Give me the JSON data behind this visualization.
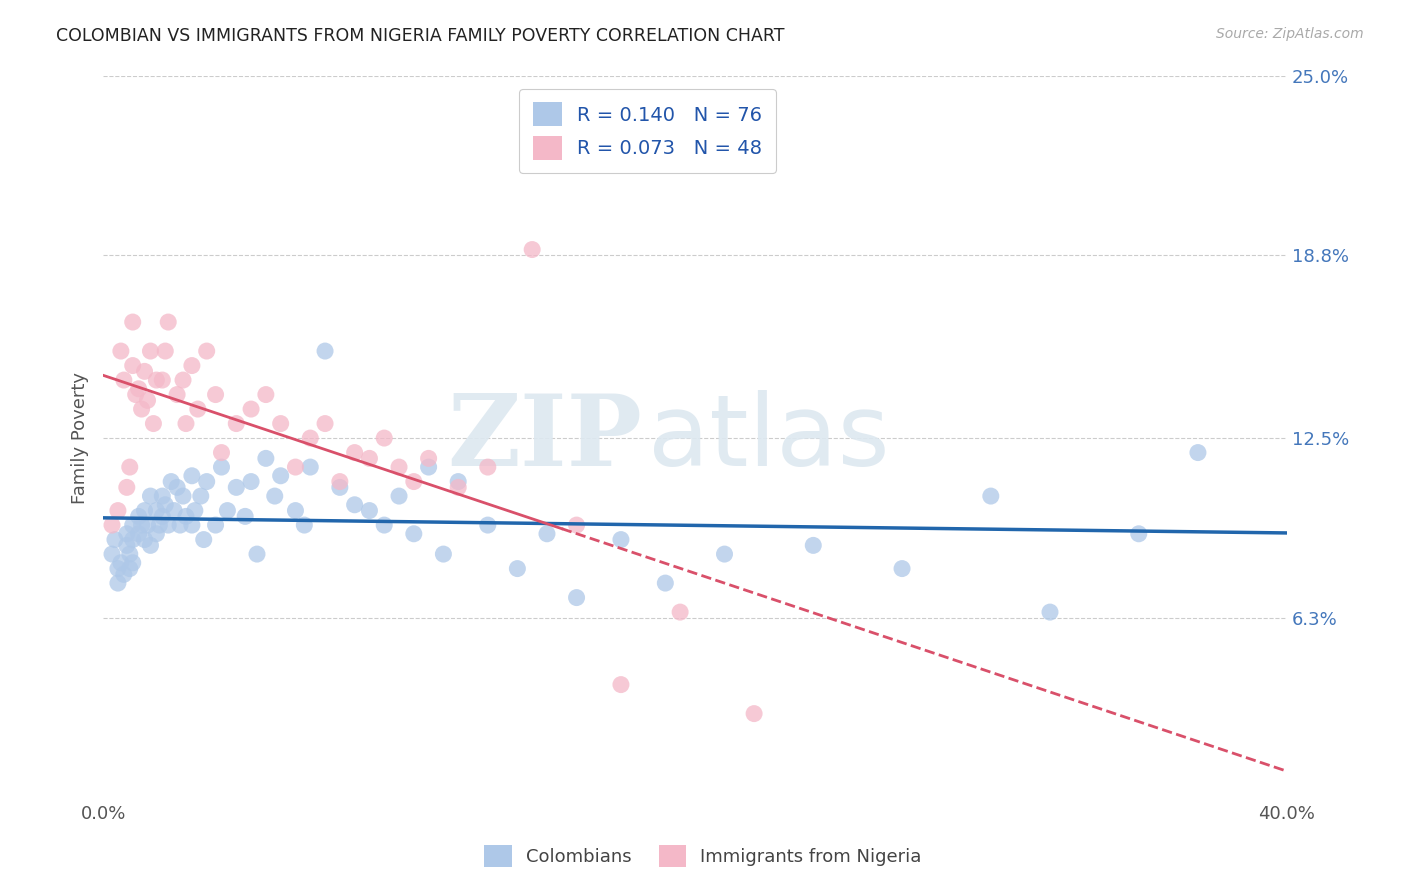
{
  "title": "COLOMBIAN VS IMMIGRANTS FROM NIGERIA FAMILY POVERTY CORRELATION CHART",
  "source": "Source: ZipAtlas.com",
  "ylabel": "Family Poverty",
  "x_min": 0.0,
  "x_max": 0.4,
  "y_min": 0.0,
  "y_max": 0.25,
  "y_tick_labels_right": [
    "25.0%",
    "18.8%",
    "12.5%",
    "6.3%"
  ],
  "y_tick_vals_right": [
    0.25,
    0.188,
    0.125,
    0.063
  ],
  "legend_label1": "Colombians",
  "legend_label2": "Immigrants from Nigeria",
  "r1": "0.140",
  "n1": "76",
  "r2": "0.073",
  "n2": "48",
  "color_blue": "#aec8e8",
  "color_pink": "#f4b8c8",
  "line_color_blue": "#2166ac",
  "line_color_pink": "#d9506a",
  "watermark_zip": "ZIP",
  "watermark_atlas": "atlas",
  "background_color": "#ffffff",
  "grid_color": "#cccccc",
  "colombians_x": [
    0.003,
    0.004,
    0.005,
    0.005,
    0.006,
    0.007,
    0.008,
    0.008,
    0.009,
    0.009,
    0.01,
    0.01,
    0.01,
    0.012,
    0.012,
    0.013,
    0.014,
    0.014,
    0.015,
    0.016,
    0.016,
    0.018,
    0.018,
    0.019,
    0.02,
    0.02,
    0.021,
    0.022,
    0.023,
    0.024,
    0.025,
    0.026,
    0.027,
    0.028,
    0.03,
    0.03,
    0.031,
    0.033,
    0.034,
    0.035,
    0.038,
    0.04,
    0.042,
    0.045,
    0.048,
    0.05,
    0.052,
    0.055,
    0.058,
    0.06,
    0.065,
    0.068,
    0.07,
    0.075,
    0.08,
    0.085,
    0.09,
    0.095,
    0.1,
    0.105,
    0.11,
    0.115,
    0.12,
    0.13,
    0.14,
    0.15,
    0.16,
    0.175,
    0.19,
    0.21,
    0.24,
    0.27,
    0.3,
    0.32,
    0.35,
    0.37
  ],
  "colombians_y": [
    0.085,
    0.09,
    0.08,
    0.075,
    0.082,
    0.078,
    0.088,
    0.092,
    0.085,
    0.08,
    0.09,
    0.095,
    0.082,
    0.092,
    0.098,
    0.095,
    0.09,
    0.1,
    0.095,
    0.088,
    0.105,
    0.092,
    0.1,
    0.095,
    0.098,
    0.105,
    0.102,
    0.095,
    0.11,
    0.1,
    0.108,
    0.095,
    0.105,
    0.098,
    0.112,
    0.095,
    0.1,
    0.105,
    0.09,
    0.11,
    0.095,
    0.115,
    0.1,
    0.108,
    0.098,
    0.11,
    0.085,
    0.118,
    0.105,
    0.112,
    0.1,
    0.095,
    0.115,
    0.155,
    0.108,
    0.102,
    0.1,
    0.095,
    0.105,
    0.092,
    0.115,
    0.085,
    0.11,
    0.095,
    0.08,
    0.092,
    0.07,
    0.09,
    0.075,
    0.085,
    0.088,
    0.08,
    0.105,
    0.065,
    0.092,
    0.12
  ],
  "nigeria_x": [
    0.003,
    0.005,
    0.006,
    0.007,
    0.008,
    0.009,
    0.01,
    0.01,
    0.011,
    0.012,
    0.013,
    0.014,
    0.015,
    0.016,
    0.017,
    0.018,
    0.02,
    0.021,
    0.022,
    0.025,
    0.027,
    0.028,
    0.03,
    0.032,
    0.035,
    0.038,
    0.04,
    0.045,
    0.05,
    0.055,
    0.06,
    0.065,
    0.07,
    0.075,
    0.08,
    0.085,
    0.09,
    0.095,
    0.1,
    0.105,
    0.11,
    0.12,
    0.13,
    0.145,
    0.16,
    0.175,
    0.195,
    0.22
  ],
  "nigeria_y": [
    0.095,
    0.1,
    0.155,
    0.145,
    0.108,
    0.115,
    0.15,
    0.165,
    0.14,
    0.142,
    0.135,
    0.148,
    0.138,
    0.155,
    0.13,
    0.145,
    0.145,
    0.155,
    0.165,
    0.14,
    0.145,
    0.13,
    0.15,
    0.135,
    0.155,
    0.14,
    0.12,
    0.13,
    0.135,
    0.14,
    0.13,
    0.115,
    0.125,
    0.13,
    0.11,
    0.12,
    0.118,
    0.125,
    0.115,
    0.11,
    0.118,
    0.108,
    0.115,
    0.19,
    0.095,
    0.04,
    0.065,
    0.03
  ]
}
